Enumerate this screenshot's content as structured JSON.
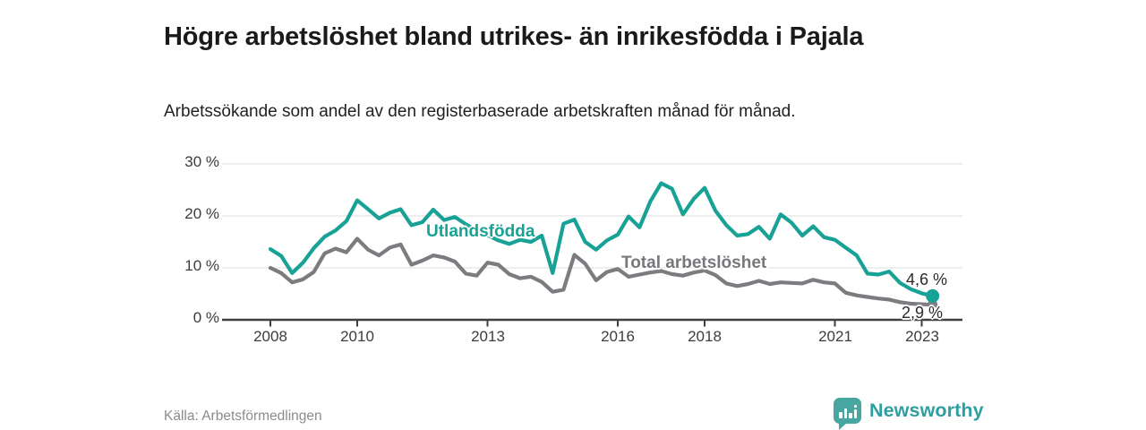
{
  "footer": {
    "source": "Källa: Arbetsförmedlingen",
    "brand": "Newsworthy",
    "brand_color": "#2d9fa0",
    "brand_icon_color": "#48a6a1"
  },
  "chart_data": {
    "type": "line",
    "title": "Högre arbetslöshet bland utrikes- än inrikesfödda i Pajala",
    "subtitle": "Arbetssökande som andel av den registerbaserade arbetskraften månad för månad.",
    "unit": "%",
    "grid": true,
    "legend": "inline-labels",
    "xlim": [
      2008,
      2023.4
    ],
    "ylim": [
      0,
      30
    ],
    "y_ticks": [
      "30 %",
      "20 %",
      "10 %",
      "0 %"
    ],
    "y_tick_values": [
      30,
      20,
      10,
      0
    ],
    "x_ticks": [
      "2008",
      "2010",
      "2013",
      "2016",
      "2018",
      "2021",
      "2023"
    ],
    "x_tick_years": [
      2008,
      2010,
      2013,
      2016,
      2018,
      2021,
      2023
    ],
    "x": [
      2008,
      2008.25,
      2008.5,
      2008.75,
      2009,
      2009.25,
      2009.5,
      2009.75,
      2010,
      2010.25,
      2010.5,
      2010.75,
      2011,
      2011.25,
      2011.5,
      2011.75,
      2012,
      2012.25,
      2012.5,
      2012.75,
      2013,
      2013.25,
      2013.5,
      2013.75,
      2014,
      2014.25,
      2014.5,
      2014.75,
      2015,
      2015.25,
      2015.5,
      2015.75,
      2016,
      2016.25,
      2016.5,
      2016.75,
      2017,
      2017.25,
      2017.5,
      2017.75,
      2018,
      2018.25,
      2018.5,
      2018.75,
      2019,
      2019.25,
      2019.5,
      2019.75,
      2020,
      2020.25,
      2020.5,
      2020.75,
      2021,
      2021.25,
      2021.5,
      2021.75,
      2022,
      2022.25,
      2022.5,
      2022.75,
      2023,
      2023.25
    ],
    "series": [
      {
        "name": "Total arbetslöshet",
        "color": "#7c7c80",
        "end_label": "2,9 %",
        "end_value": 2.9,
        "values": [
          10.0,
          9.0,
          7.2,
          7.8,
          9.2,
          12.8,
          13.7,
          13.0,
          15.6,
          13.5,
          12.4,
          13.9,
          14.5,
          10.6,
          11.4,
          12.4,
          12.0,
          11.2,
          8.9,
          8.5,
          11.0,
          10.6,
          8.8,
          8.0,
          8.3,
          7.3,
          5.4,
          5.8,
          12.5,
          10.8,
          7.6,
          9.2,
          9.8,
          8.3,
          8.7,
          9.1,
          9.4,
          8.8,
          8.5,
          9.1,
          9.5,
          8.6,
          7.0,
          6.5,
          6.9,
          7.5,
          6.9,
          7.2,
          7.1,
          7.0,
          7.7,
          7.2,
          7.0,
          5.2,
          4.7,
          4.4,
          4.1,
          3.9,
          3.4,
          3.1,
          3.0,
          2.9
        ]
      },
      {
        "name": "Utlandsfödda",
        "color": "#17a295",
        "end_label": "4,6 %",
        "end_value": 4.6,
        "values": [
          13.6,
          12.3,
          9.0,
          11.0,
          13.8,
          16.0,
          17.2,
          19.0,
          23.0,
          21.3,
          19.5,
          20.6,
          21.3,
          18.2,
          18.8,
          21.2,
          19.2,
          19.8,
          18.4,
          17.2,
          16.3,
          15.3,
          14.6,
          15.4,
          15.0,
          16.2,
          9.0,
          18.5,
          19.3,
          15.0,
          13.5,
          15.3,
          16.4,
          19.9,
          17.8,
          22.8,
          26.3,
          25.2,
          20.3,
          23.3,
          25.4,
          21.0,
          18.2,
          16.2,
          16.5,
          17.9,
          15.6,
          20.3,
          18.7,
          16.2,
          18.0,
          15.9,
          15.4,
          13.9,
          12.4,
          8.9,
          8.7,
          9.3,
          7.1,
          5.9,
          5.1,
          4.6
        ]
      }
    ]
  }
}
